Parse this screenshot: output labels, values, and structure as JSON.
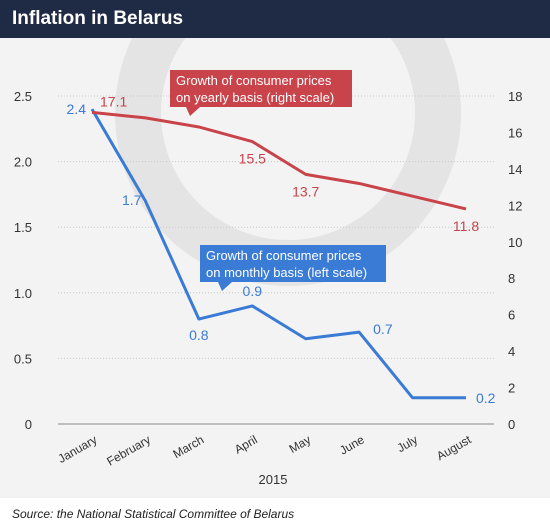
{
  "header": {
    "title": "Inflation in Belarus"
  },
  "footer": {
    "source": "Source: the National Statistical Committee of Belarus"
  },
  "colors": {
    "header_bg": "#1f2a44",
    "monthly": "#3a7bd5",
    "yearly": "#c8434a",
    "background": "#f3f3f3",
    "watermark": "#e4e4e4"
  },
  "icons": {
    "watermark": "logo-watermark-icon"
  },
  "chart_data": {
    "type": "line",
    "title": "Inflation in Belarus",
    "categories": [
      "January",
      "February",
      "March",
      "April",
      "May",
      "June",
      "July",
      "August"
    ],
    "xlabel": "2015",
    "ylim_left": [
      0,
      2.5
    ],
    "yticks_left": [
      "0",
      "0.5",
      "1.0",
      "1.5",
      "2.0",
      "2.5"
    ],
    "ylim_right": [
      0,
      18
    ],
    "yticks_right": [
      "0",
      "2",
      "4",
      "6",
      "8",
      "10",
      "12",
      "14",
      "16",
      "18"
    ],
    "grid": true,
    "series": [
      {
        "name": "Growth of consumer prices on monthly basis (left scale)",
        "axis": "left",
        "values": [
          2.4,
          1.7,
          0.8,
          0.9,
          0.65,
          0.7,
          0.2,
          0.2
        ],
        "labels": [
          "2.4",
          "1.7",
          "0.8",
          "0.9",
          "",
          "0.7",
          "",
          "0.2"
        ]
      },
      {
        "name": "Growth of consumer prices on yearly basis (right scale)",
        "axis": "right",
        "values": [
          17.1,
          16.8,
          16.3,
          15.5,
          13.7,
          13.2,
          12.5,
          11.8
        ],
        "labels": [
          "17.1",
          "",
          "",
          "15.5",
          "13.7",
          "",
          "",
          "11.8"
        ]
      }
    ],
    "callouts": {
      "yearly": [
        "Growth of consumer prices",
        "on yearly basis (right scale)"
      ],
      "monthly": [
        "Growth of consumer prices",
        "on monthly basis (left scale)"
      ]
    }
  }
}
